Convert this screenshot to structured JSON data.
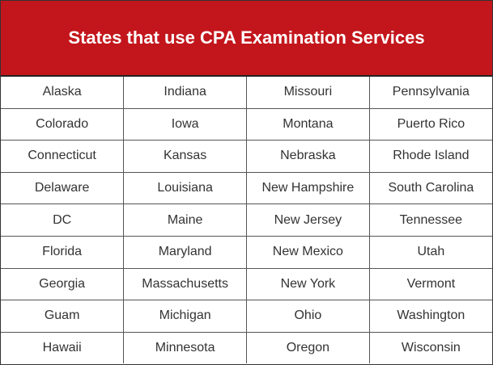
{
  "header": {
    "title": "States that use CPA Examination Services"
  },
  "table": {
    "rows": [
      [
        "Alaska",
        "Indiana",
        "Missouri",
        "Pennsylvania"
      ],
      [
        "Colorado",
        "Iowa",
        "Montana",
        "Puerto Rico"
      ],
      [
        "Connecticut",
        "Kansas",
        "Nebraska",
        "Rhode Island"
      ],
      [
        "Delaware",
        "Louisiana",
        "New Hampshire",
        "South Carolina"
      ],
      [
        "DC",
        "Maine",
        "New Jersey",
        "Tennessee"
      ],
      [
        "Florida",
        "Maryland",
        "New Mexico",
        "Utah"
      ],
      [
        "Georgia",
        "Massachusetts",
        "New York",
        "Vermont"
      ],
      [
        "Guam",
        "Michigan",
        "Ohio",
        "Washington"
      ],
      [
        "Hawaii",
        "Minnesota",
        "Oregon",
        "Wisconsin"
      ]
    ]
  }
}
